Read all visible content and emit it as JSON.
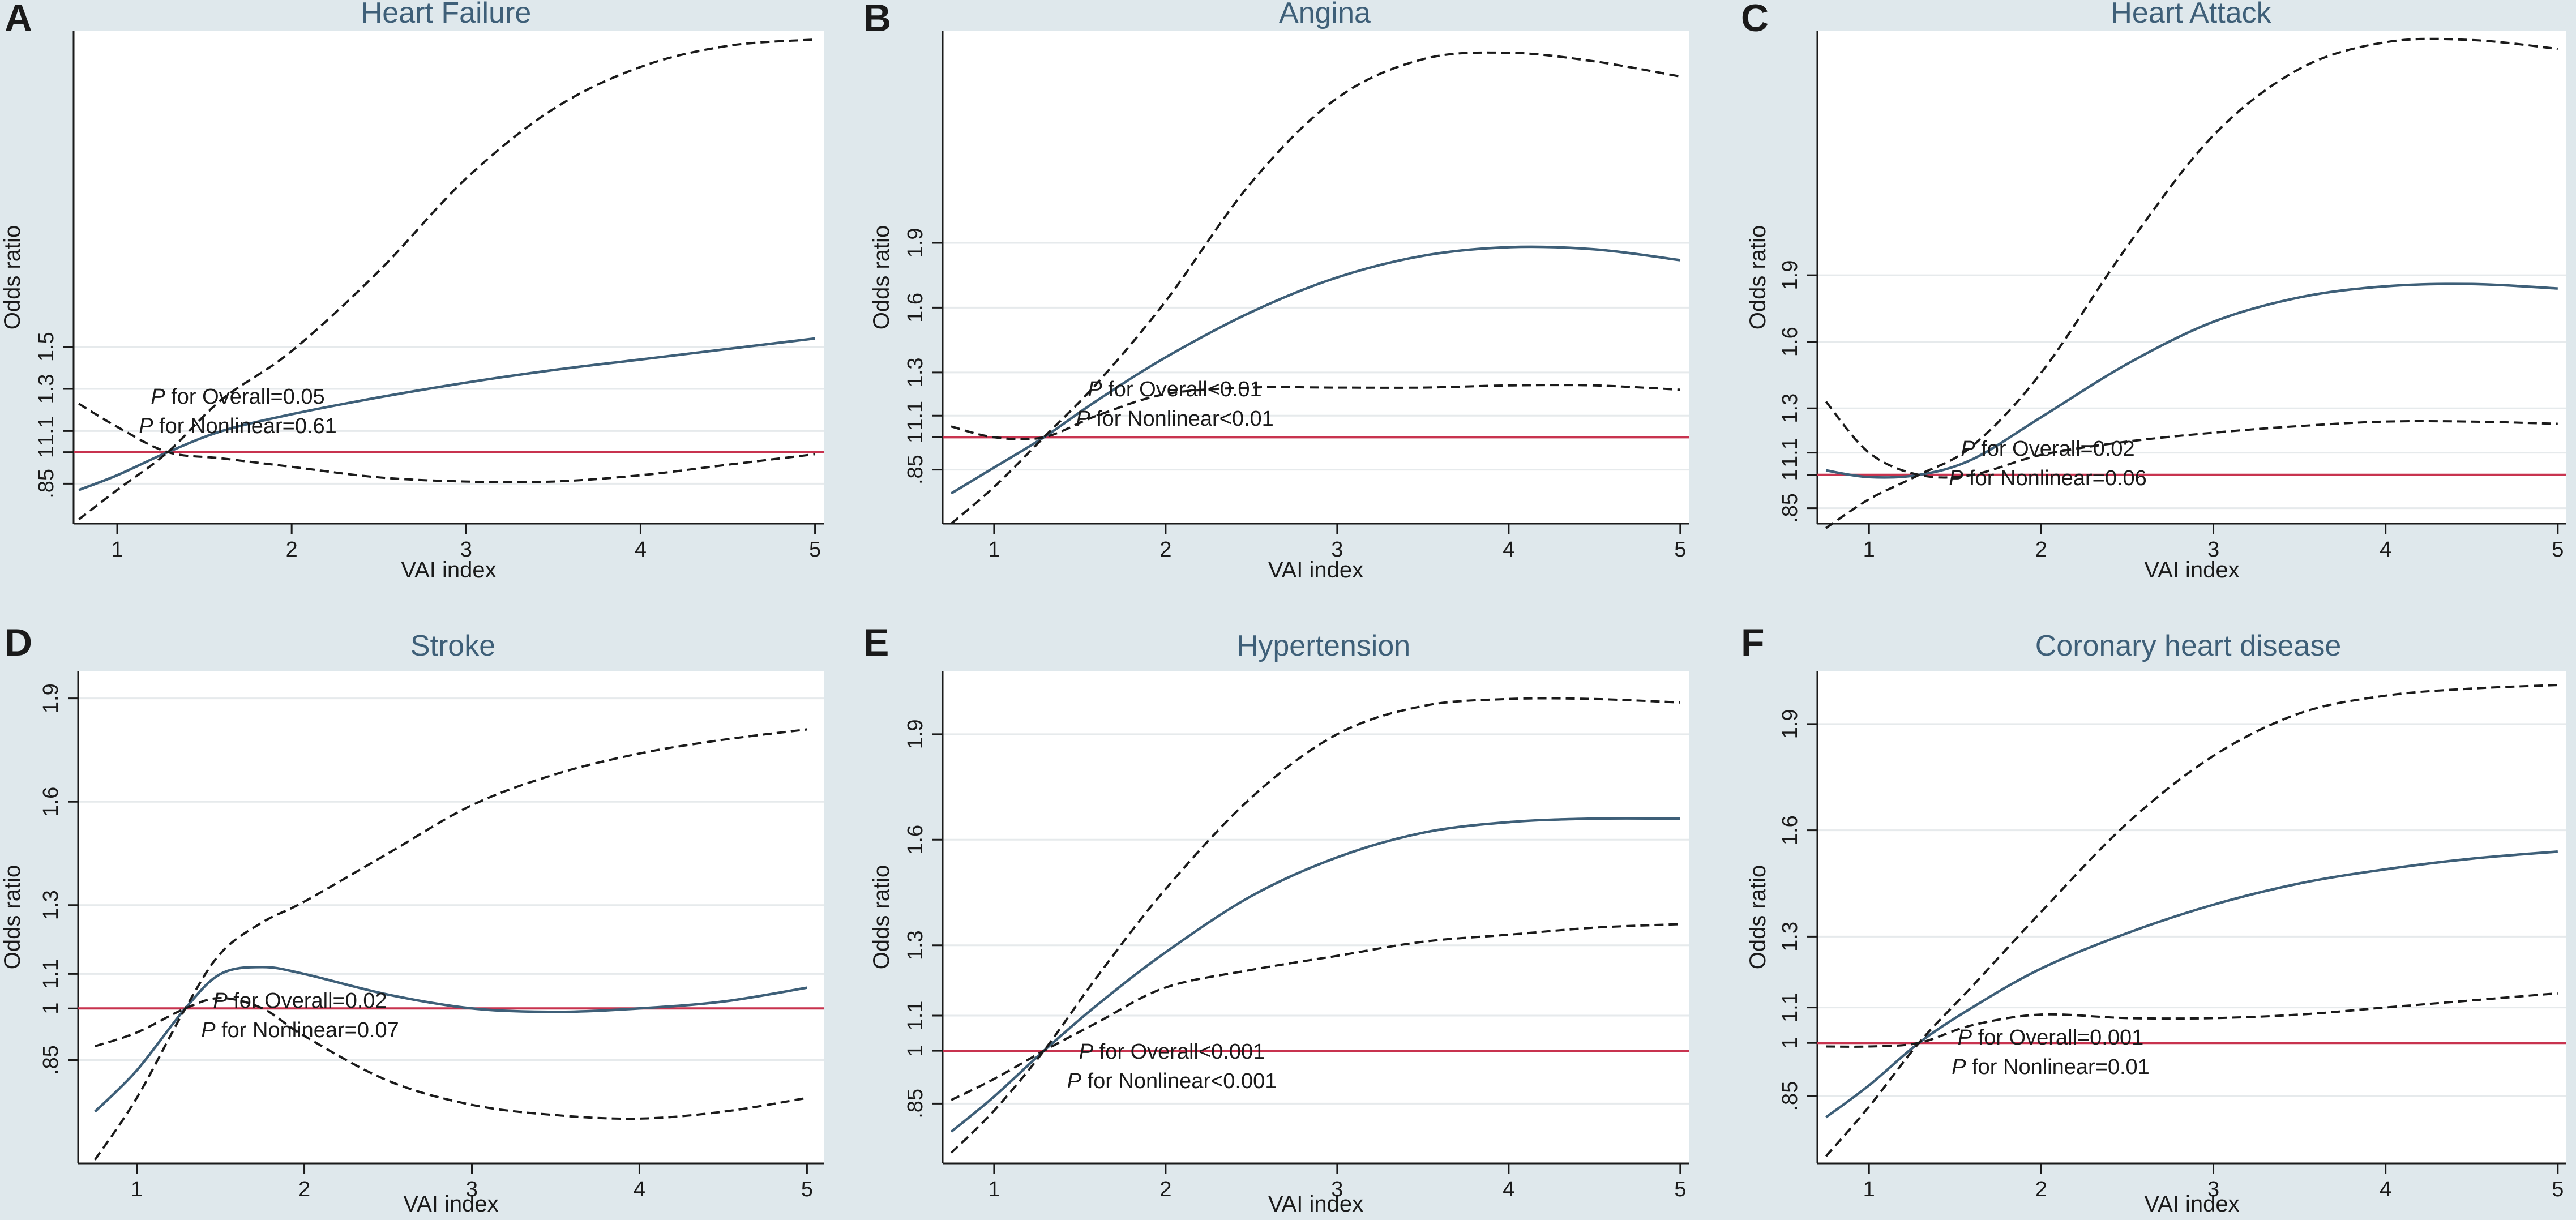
{
  "figure": {
    "background_color": "#dfe8ec",
    "plot_background_color": "#ffffff",
    "grid_color": "#e6eaec",
    "estimate_color": "#3e5f78",
    "ci_color": "#1a1a1a",
    "reference_color": "#c8334f",
    "text_color": "#1a1a1a"
  },
  "chart_data": [
    {
      "panel_letter": "A",
      "title": "Heart Failure",
      "type": "line",
      "xlabel": "VAI index",
      "ylabel": "Odds ratio",
      "xlim": [
        0.75,
        5.05
      ],
      "ylim": [
        0.66,
        3.0
      ],
      "ylabel_rotated": true,
      "xticks": [
        1,
        2,
        3,
        4,
        5
      ],
      "xtick_labels": [
        "1",
        "2",
        "3",
        "4",
        "5"
      ],
      "yticks": [
        0.85,
        1,
        1.1,
        1.3,
        1.5
      ],
      "ytick_labels": [
        ".85",
        "1",
        "1.1",
        "1.3",
        "1.5"
      ],
      "reference_line": 1,
      "annotation": [
        "P for Overall=0.05",
        "P for Nonlinear=0.61"
      ],
      "series": [
        {
          "name": "Odds ratio",
          "style": "solid",
          "x": [
            0.78,
            1.0,
            1.29,
            1.6,
            2.0,
            2.5,
            3.0,
            3.5,
            4.0,
            4.5,
            5.0
          ],
          "y": [
            0.82,
            0.89,
            1.0,
            1.1,
            1.18,
            1.26,
            1.33,
            1.39,
            1.44,
            1.49,
            1.54
          ]
        },
        {
          "name": "Upper 95% CI",
          "style": "dashed",
          "x": [
            0.78,
            1.0,
            1.29,
            1.6,
            2.0,
            2.5,
            3.0,
            3.5,
            4.0,
            4.5,
            5.0
          ],
          "y": [
            0.68,
            0.82,
            1.0,
            1.25,
            1.48,
            1.86,
            2.3,
            2.63,
            2.83,
            2.93,
            2.96
          ]
        },
        {
          "name": "Lower 95% CI",
          "style": "dashed",
          "x": [
            0.78,
            1.0,
            1.29,
            1.6,
            2.0,
            2.5,
            3.0,
            3.5,
            4.0,
            4.5,
            5.0
          ],
          "y": [
            1.23,
            1.12,
            1.0,
            0.97,
            0.93,
            0.88,
            0.86,
            0.86,
            0.89,
            0.94,
            0.99
          ]
        }
      ]
    },
    {
      "panel_letter": "B",
      "title": "Angina",
      "type": "line",
      "xlabel": "VAI index",
      "ylabel": "Odds ratio",
      "xlim": [
        0.7,
        5.05
      ],
      "ylim": [
        0.6,
        2.88
      ],
      "xticks": [
        1,
        2,
        3,
        4,
        5
      ],
      "xtick_labels": [
        "1",
        "2",
        "3",
        "4",
        "5"
      ],
      "yticks": [
        0.85,
        1,
        1.1,
        1.3,
        1.6,
        1.9
      ],
      "ytick_labels": [
        ".85",
        "1",
        "1.1",
        "1.3",
        "1.6",
        "1.9"
      ],
      "reference_line": 1,
      "annotation": [
        "P for Overall<0.01",
        "P for Nonlinear<0.01"
      ],
      "series": [
        {
          "name": "Odds ratio",
          "style": "solid",
          "x": [
            0.75,
            1.0,
            1.29,
            1.6,
            2.0,
            2.5,
            3.0,
            3.5,
            4.0,
            4.5,
            5.0
          ],
          "y": [
            0.74,
            0.86,
            1.0,
            1.17,
            1.37,
            1.58,
            1.74,
            1.84,
            1.88,
            1.87,
            1.82
          ]
        },
        {
          "name": "Upper 95% CI",
          "style": "dashed",
          "x": [
            0.75,
            1.0,
            1.29,
            1.6,
            2.0,
            2.5,
            3.0,
            3.5,
            4.0,
            4.5,
            5.0
          ],
          "y": [
            0.6,
            0.77,
            1.0,
            1.25,
            1.63,
            2.18,
            2.57,
            2.75,
            2.78,
            2.74,
            2.67
          ]
        },
        {
          "name": "Lower 95% CI",
          "style": "dashed",
          "x": [
            0.75,
            1.0,
            1.29,
            1.6,
            2.0,
            2.5,
            3.0,
            3.5,
            4.0,
            4.5,
            5.0
          ],
          "y": [
            1.05,
            1.0,
            1.0,
            1.1,
            1.2,
            1.23,
            1.23,
            1.23,
            1.24,
            1.24,
            1.22
          ]
        }
      ]
    },
    {
      "panel_letter": "C",
      "title": "Heart Attack",
      "type": "line",
      "xlabel": "VAI index",
      "ylabel": "Odds ratio",
      "xlim": [
        0.7,
        5.05
      ],
      "ylim": [
        0.78,
        3.0
      ],
      "xticks": [
        1,
        2,
        3,
        4,
        5
      ],
      "xtick_labels": [
        "1",
        "2",
        "3",
        "4",
        "5"
      ],
      "yticks": [
        0.85,
        1,
        1.1,
        1.3,
        1.6,
        1.9
      ],
      "ytick_labels": [
        ".85",
        "1",
        "1.1",
        "1.3",
        "1.6",
        "1.9"
      ],
      "reference_line": 1,
      "annotation": [
        "P for Overall=0.02",
        "P for Nonlinear=0.06"
      ],
      "series": [
        {
          "name": "Odds ratio",
          "style": "solid",
          "x": [
            0.75,
            1.0,
            1.29,
            1.6,
            2.0,
            2.5,
            3.0,
            3.5,
            4.0,
            4.5,
            5.0
          ],
          "y": [
            1.02,
            0.99,
            1.0,
            1.07,
            1.26,
            1.5,
            1.69,
            1.8,
            1.85,
            1.86,
            1.84
          ]
        },
        {
          "name": "Upper 95% CI",
          "style": "dashed",
          "x": [
            0.75,
            1.0,
            1.29,
            1.6,
            2.0,
            2.5,
            3.0,
            3.5,
            4.0,
            4.5,
            5.0
          ],
          "y": [
            0.76,
            0.89,
            1.0,
            1.13,
            1.46,
            2.03,
            2.53,
            2.83,
            2.95,
            2.96,
            2.92
          ]
        },
        {
          "name": "Lower 95% CI",
          "style": "dashed",
          "x": [
            0.75,
            1.0,
            1.29,
            1.6,
            2.0,
            2.5,
            3.0,
            3.5,
            4.0,
            4.5,
            5.0
          ],
          "y": [
            1.33,
            1.1,
            1.0,
            1.0,
            1.09,
            1.15,
            1.19,
            1.22,
            1.24,
            1.24,
            1.23
          ]
        }
      ]
    },
    {
      "panel_letter": "D",
      "title": "Stroke",
      "type": "line",
      "xlabel": "VAI index",
      "ylabel": "Odds ratio",
      "xlim": [
        0.65,
        5.1
      ],
      "ylim": [
        0.55,
        1.98
      ],
      "xticks": [
        1,
        2,
        3,
        4,
        5
      ],
      "xtick_labels": [
        "1",
        "2",
        "3",
        "4",
        "5"
      ],
      "yticks": [
        0.85,
        1,
        1.1,
        1.3,
        1.6,
        1.9
      ],
      "ytick_labels": [
        ".85",
        "1",
        "1.1",
        "1.3",
        "1.6",
        "1.9"
      ],
      "reference_line": 1,
      "annotation": [
        "P for Overall=0.02",
        "P for Nonlinear=0.07"
      ],
      "series": [
        {
          "name": "Odds ratio",
          "style": "solid",
          "x": [
            0.75,
            1.0,
            1.29,
            1.5,
            1.75,
            2.0,
            2.5,
            3.0,
            3.5,
            4.0,
            4.5,
            5.0
          ],
          "y": [
            0.7,
            0.82,
            1.0,
            1.1,
            1.12,
            1.1,
            1.04,
            1.0,
            0.99,
            1.0,
            1.02,
            1.06
          ]
        },
        {
          "name": "Upper 95% CI",
          "style": "dashed",
          "x": [
            0.75,
            1.0,
            1.29,
            1.5,
            1.75,
            2.0,
            2.5,
            3.0,
            3.5,
            4.0,
            4.5,
            5.0
          ],
          "y": [
            0.56,
            0.74,
            1.0,
            1.16,
            1.25,
            1.31,
            1.45,
            1.59,
            1.68,
            1.74,
            1.78,
            1.81
          ]
        },
        {
          "name": "Lower 95% CI",
          "style": "dashed",
          "x": [
            0.75,
            1.0,
            1.29,
            1.5,
            1.75,
            2.0,
            2.5,
            3.0,
            3.5,
            4.0,
            4.5,
            5.0
          ],
          "y": [
            0.89,
            0.93,
            1.0,
            1.03,
            1.0,
            0.92,
            0.79,
            0.72,
            0.69,
            0.68,
            0.7,
            0.74
          ]
        }
      ]
    },
    {
      "panel_letter": "E",
      "title": "Hypertension",
      "type": "line",
      "xlabel": "VAI index",
      "ylabel": "Odds ratio",
      "xlim": [
        0.7,
        5.05
      ],
      "ylim": [
        0.68,
        2.08
      ],
      "xticks": [
        1,
        2,
        3,
        4,
        5
      ],
      "xtick_labels": [
        "1",
        "2",
        "3",
        "4",
        "5"
      ],
      "yticks": [
        0.85,
        1,
        1.1,
        1.3,
        1.6,
        1.9
      ],
      "ytick_labels": [
        ".85",
        "1",
        "1.1",
        "1.3",
        "1.6",
        "1.9"
      ],
      "reference_line": 1,
      "annotation": [
        "P for Overall<0.001",
        "P for Nonlinear<0.001"
      ],
      "series": [
        {
          "name": "Odds ratio",
          "style": "solid",
          "x": [
            0.75,
            1.0,
            1.29,
            1.6,
            2.0,
            2.5,
            3.0,
            3.5,
            4.0,
            4.5,
            5.0
          ],
          "y": [
            0.77,
            0.87,
            1.0,
            1.13,
            1.28,
            1.44,
            1.55,
            1.62,
            1.65,
            1.66,
            1.66
          ]
        },
        {
          "name": "Upper 95% CI",
          "style": "dashed",
          "x": [
            0.75,
            1.0,
            1.29,
            1.6,
            2.0,
            2.5,
            3.0,
            3.5,
            4.0,
            4.5,
            5.0
          ],
          "y": [
            0.71,
            0.83,
            1.0,
            1.21,
            1.46,
            1.72,
            1.9,
            1.98,
            2.0,
            2.0,
            1.99
          ]
        },
        {
          "name": "Lower 95% CI",
          "style": "dashed",
          "x": [
            0.75,
            1.0,
            1.29,
            1.6,
            2.0,
            2.5,
            3.0,
            3.5,
            4.0,
            4.5,
            5.0
          ],
          "y": [
            0.86,
            0.92,
            1.0,
            1.08,
            1.18,
            1.23,
            1.27,
            1.31,
            1.33,
            1.35,
            1.36
          ]
        }
      ]
    },
    {
      "panel_letter": "F",
      "title": "Coronary heart disease",
      "type": "line",
      "xlabel": "VAI index",
      "ylabel": "Odds ratio",
      "xlim": [
        0.7,
        5.05
      ],
      "ylim": [
        0.66,
        2.05
      ],
      "xticks": [
        1,
        2,
        3,
        4,
        5
      ],
      "xtick_labels": [
        "1",
        "2",
        "3",
        "4",
        "5"
      ],
      "yticks": [
        0.85,
        1,
        1.1,
        1.3,
        1.6,
        1.9
      ],
      "ytick_labels": [
        ".85",
        "1",
        "1.1",
        "1.3",
        "1.6",
        "1.9"
      ],
      "reference_line": 1,
      "annotation": [
        "P for Overall=0.001",
        "P for Nonlinear=0.01"
      ],
      "series": [
        {
          "name": "Odds ratio",
          "style": "solid",
          "x": [
            0.75,
            1.0,
            1.29,
            1.6,
            2.0,
            2.5,
            3.0,
            3.5,
            4.0,
            4.5,
            5.0
          ],
          "y": [
            0.79,
            0.88,
            1.0,
            1.1,
            1.21,
            1.31,
            1.39,
            1.45,
            1.49,
            1.52,
            1.54
          ]
        },
        {
          "name": "Upper 95% CI",
          "style": "dashed",
          "x": [
            0.75,
            1.0,
            1.29,
            1.6,
            2.0,
            2.5,
            3.0,
            3.5,
            4.0,
            4.5,
            5.0
          ],
          "y": [
            0.68,
            0.82,
            1.0,
            1.16,
            1.37,
            1.62,
            1.81,
            1.93,
            1.98,
            2.0,
            2.01
          ]
        },
        {
          "name": "Lower 95% CI",
          "style": "dashed",
          "x": [
            0.75,
            1.0,
            1.29,
            1.6,
            2.0,
            2.5,
            3.0,
            3.5,
            4.0,
            4.5,
            5.0
          ],
          "y": [
            0.99,
            0.99,
            1.0,
            1.05,
            1.08,
            1.07,
            1.07,
            1.08,
            1.1,
            1.12,
            1.14
          ]
        }
      ]
    }
  ]
}
